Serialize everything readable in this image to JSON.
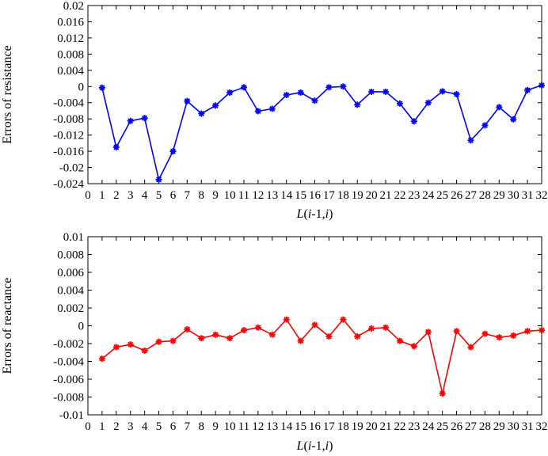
{
  "chart_data": [
    {
      "type": "line",
      "ylabel": "Errors of resistance",
      "xlabel": "L(i-1,i)",
      "x_ticks": [
        0,
        1,
        2,
        3,
        4,
        5,
        6,
        7,
        8,
        9,
        10,
        11,
        12,
        13,
        14,
        15,
        16,
        17,
        18,
        19,
        20,
        21,
        22,
        23,
        24,
        25,
        26,
        27,
        28,
        29,
        30,
        31,
        32
      ],
      "y_ticks": [
        "0.02",
        "0.016",
        "0.012",
        "0.008",
        "0.004",
        "0",
        "-0.004",
        "-0.008",
        "-0.012",
        "-0.016",
        "-0.02",
        "-0.024"
      ],
      "ylim": [
        -0.024,
        0.02
      ],
      "xlim": [
        0,
        32
      ],
      "grid": false,
      "marker": "asterisk",
      "color": "#0000ff",
      "series": [
        {
          "x": [
            1,
            2,
            3,
            4,
            5,
            6,
            7,
            8,
            9,
            10,
            11,
            12,
            13,
            14,
            15,
            16,
            17,
            18,
            19,
            20,
            21,
            22,
            23,
            24,
            25,
            26,
            27,
            28,
            29,
            30,
            31,
            32
          ],
          "values": [
            -0.0003,
            -0.015,
            -0.0085,
            -0.0078,
            -0.023,
            -0.016,
            -0.0036,
            -0.0067,
            -0.0047,
            -0.0015,
            -0.0002,
            -0.0061,
            -0.0055,
            -0.0021,
            -0.0015,
            -0.0035,
            -0.0002,
            0.0,
            -0.0045,
            -0.0013,
            -0.0013,
            -0.0042,
            -0.0086,
            -0.004,
            -0.0012,
            -0.0019,
            -0.0133,
            -0.0096,
            -0.0051,
            -0.0081,
            -0.0009,
            0.0003
          ]
        }
      ]
    },
    {
      "type": "line",
      "ylabel": "Errors of reactance",
      "xlabel": "L(i-1,i)",
      "x_ticks": [
        0,
        1,
        2,
        3,
        4,
        5,
        6,
        7,
        8,
        9,
        10,
        11,
        12,
        13,
        14,
        15,
        16,
        17,
        18,
        19,
        20,
        21,
        22,
        23,
        24,
        25,
        26,
        27,
        28,
        29,
        30,
        31,
        32
      ],
      "y_ticks": [
        "0.01",
        "0.008",
        "0.006",
        "0.004",
        "0.002",
        "0",
        "-0.002",
        "-0.004",
        "-0.006",
        "-0.008",
        "-0.01"
      ],
      "ylim": [
        -0.01,
        0.01
      ],
      "xlim": [
        0,
        32
      ],
      "grid": false,
      "marker": "asterisk",
      "color": "#ff0000",
      "series": [
        {
          "x": [
            1,
            2,
            3,
            4,
            5,
            6,
            7,
            8,
            9,
            10,
            11,
            12,
            13,
            14,
            15,
            16,
            17,
            18,
            19,
            20,
            21,
            22,
            23,
            24,
            25,
            26,
            27,
            28,
            29,
            30,
            31,
            32
          ],
          "values": [
            -0.0037,
            -0.0024,
            -0.0021,
            -0.0028,
            -0.0018,
            -0.0017,
            -0.0004,
            -0.0014,
            -0.001,
            -0.0014,
            -0.0005,
            -0.0002,
            -0.001,
            0.0007,
            -0.0017,
            0.0001,
            -0.0012,
            0.0007,
            -0.0012,
            -0.0003,
            -0.0002,
            -0.0017,
            -0.0023,
            -0.0007,
            -0.0076,
            -0.0006,
            -0.0024,
            -0.0009,
            -0.0013,
            -0.0011,
            -0.0006,
            -0.0005
          ]
        }
      ]
    }
  ]
}
